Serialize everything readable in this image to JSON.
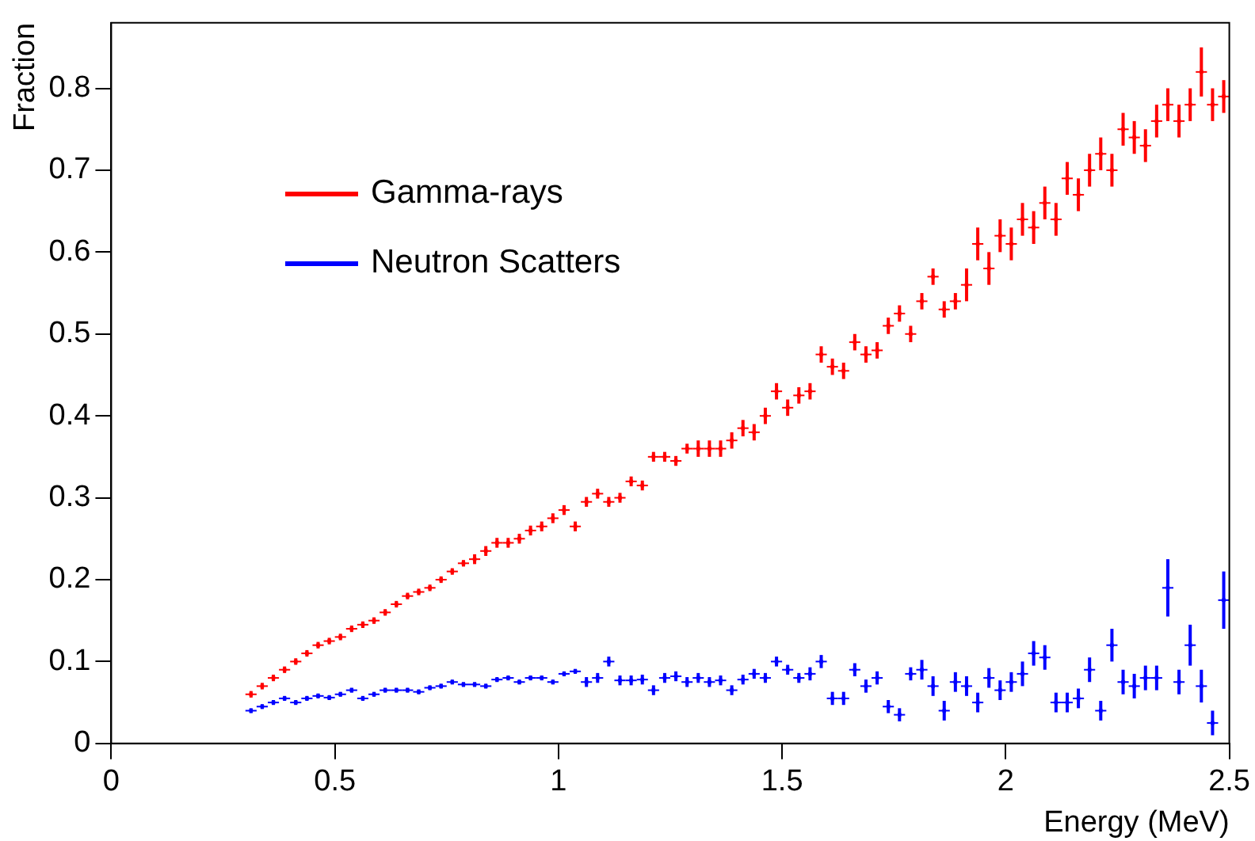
{
  "chart_data": {
    "type": "scatter",
    "xlabel": "Energy (MeV)",
    "ylabel": "Fraction",
    "legend": "top left",
    "grid": false,
    "xlim": [
      0,
      2.5
    ],
    "xticks": [
      0,
      0.5,
      1,
      1.5,
      2,
      2.5
    ],
    "ylim": [
      0,
      0.88
    ],
    "yticks": [
      0,
      0.1,
      0.2,
      0.3,
      0.4,
      0.5,
      0.6,
      0.7,
      0.8
    ],
    "x": [
      0.3125,
      0.3375,
      0.3625,
      0.3875,
      0.4125,
      0.4375,
      0.4625,
      0.4875,
      0.5125,
      0.5375,
      0.5625,
      0.5875,
      0.6125,
      0.6375,
      0.6625,
      0.6875,
      0.7125,
      0.7375,
      0.7625,
      0.7875,
      0.8125,
      0.8375,
      0.8625,
      0.8875,
      0.9125,
      0.9375,
      0.9625,
      0.9875,
      1.0125,
      1.0375,
      1.0625,
      1.0875,
      1.1125,
      1.1375,
      1.1625,
      1.1875,
      1.2125,
      1.2375,
      1.2625,
      1.2875,
      1.3125,
      1.3375,
      1.3625,
      1.3875,
      1.4125,
      1.4375,
      1.4625,
      1.4875,
      1.5125,
      1.5375,
      1.5625,
      1.5875,
      1.6125,
      1.6375,
      1.6625,
      1.6875,
      1.7125,
      1.7375,
      1.7625,
      1.7875,
      1.8125,
      1.8375,
      1.8625,
      1.8875,
      1.9125,
      1.9375,
      1.9625,
      1.9875,
      2.0125,
      2.0375,
      2.0625,
      2.0875,
      2.1125,
      2.1375,
      2.1625,
      2.1875,
      2.2125,
      2.2375,
      2.2625,
      2.2875,
      2.3125,
      2.3375,
      2.3625,
      2.3875,
      2.4125,
      2.4375,
      2.4625,
      2.4875
    ],
    "series": [
      {
        "name": "Gamma-rays",
        "color": "#ff0000",
        "values": [
          0.06,
          0.07,
          0.08,
          0.09,
          0.1,
          0.11,
          0.12,
          0.125,
          0.13,
          0.14,
          0.145,
          0.15,
          0.16,
          0.17,
          0.18,
          0.185,
          0.19,
          0.2,
          0.21,
          0.22,
          0.225,
          0.235,
          0.245,
          0.245,
          0.25,
          0.26,
          0.265,
          0.275,
          0.285,
          0.265,
          0.295,
          0.305,
          0.295,
          0.3,
          0.32,
          0.315,
          0.35,
          0.35,
          0.345,
          0.36,
          0.36,
          0.36,
          0.36,
          0.37,
          0.385,
          0.38,
          0.4,
          0.43,
          0.41,
          0.425,
          0.43,
          0.475,
          0.46,
          0.455,
          0.49,
          0.475,
          0.48,
          0.51,
          0.525,
          0.5,
          0.54,
          0.57,
          0.53,
          0.54,
          0.56,
          0.61,
          0.58,
          0.62,
          0.61,
          0.64,
          0.63,
          0.66,
          0.64,
          0.69,
          0.67,
          0.7,
          0.72,
          0.7,
          0.75,
          0.74,
          0.73,
          0.76,
          0.78,
          0.76,
          0.78,
          0.82,
          0.78,
          0.79
        ],
        "errors": [
          0.004,
          0.004,
          0.004,
          0.004,
          0.004,
          0.004,
          0.004,
          0.004,
          0.004,
          0.004,
          0.004,
          0.004,
          0.004,
          0.004,
          0.004,
          0.004,
          0.004,
          0.004,
          0.004,
          0.004,
          0.006,
          0.006,
          0.006,
          0.006,
          0.006,
          0.006,
          0.006,
          0.006,
          0.006,
          0.006,
          0.006,
          0.006,
          0.006,
          0.006,
          0.006,
          0.006,
          0.006,
          0.006,
          0.006,
          0.006,
          0.01,
          0.01,
          0.01,
          0.01,
          0.01,
          0.01,
          0.01,
          0.01,
          0.01,
          0.01,
          0.01,
          0.01,
          0.01,
          0.01,
          0.01,
          0.01,
          0.01,
          0.01,
          0.01,
          0.01,
          0.01,
          0.01,
          0.01,
          0.01,
          0.02,
          0.02,
          0.02,
          0.02,
          0.02,
          0.02,
          0.02,
          0.02,
          0.02,
          0.02,
          0.02,
          0.02,
          0.02,
          0.02,
          0.02,
          0.02,
          0.02,
          0.02,
          0.02,
          0.02,
          0.02,
          0.03,
          0.02,
          0.02
        ],
        "xerrors": [
          0.0125,
          0.0125,
          0.0125,
          0.0125,
          0.0125,
          0.0125,
          0.0125,
          0.0125,
          0.0125,
          0.0125,
          0.0125,
          0.0125,
          0.0125,
          0.0125,
          0.0125,
          0.0125,
          0.0125,
          0.0125,
          0.0125,
          0.0125,
          0.0125,
          0.0125,
          0.0125,
          0.0125,
          0.0125,
          0.0125,
          0.0125,
          0.0125,
          0.0125,
          0.0125,
          0.0125,
          0.0125,
          0.0125,
          0.0125,
          0.0125,
          0.0125,
          0.0125,
          0.0125,
          0.0125,
          0.0125,
          0.0125,
          0.0125,
          0.0125,
          0.0125,
          0.0125,
          0.0125,
          0.0125,
          0.0125,
          0.0125,
          0.0125,
          0.0125,
          0.0125,
          0.0125,
          0.0125,
          0.0125,
          0.0125,
          0.0125,
          0.0125,
          0.0125,
          0.0125,
          0.0125,
          0.0125,
          0.0125,
          0.0125,
          0.0125,
          0.0125,
          0.0125,
          0.0125,
          0.0125,
          0.0125,
          0.0125,
          0.0125,
          0.0125,
          0.0125,
          0.0125,
          0.0125,
          0.0125,
          0.0125,
          0.0125,
          0.0125,
          0.0125,
          0.0125,
          0.0125,
          0.0125,
          0.0125,
          0.0125,
          0.0125,
          0.0125
        ]
      },
      {
        "name": "Neutron Scatters",
        "color": "#0000ff",
        "values": [
          0.04,
          0.045,
          0.05,
          0.055,
          0.05,
          0.055,
          0.058,
          0.056,
          0.06,
          0.065,
          0.055,
          0.06,
          0.065,
          0.065,
          0.065,
          0.063,
          0.068,
          0.07,
          0.075,
          0.072,
          0.072,
          0.07,
          0.078,
          0.08,
          0.075,
          0.08,
          0.08,
          0.075,
          0.085,
          0.088,
          0.075,
          0.08,
          0.1,
          0.077,
          0.077,
          0.078,
          0.065,
          0.08,
          0.082,
          0.075,
          0.08,
          0.075,
          0.077,
          0.065,
          0.078,
          0.085,
          0.08,
          0.1,
          0.09,
          0.08,
          0.085,
          0.1,
          0.055,
          0.055,
          0.09,
          0.07,
          0.08,
          0.045,
          0.035,
          0.085,
          0.09,
          0.07,
          0.04,
          0.075,
          0.07,
          0.05,
          0.08,
          0.065,
          0.075,
          0.085,
          0.11,
          0.105,
          0.05,
          0.05,
          0.055,
          0.09,
          0.04,
          0.12,
          0.075,
          0.07,
          0.08,
          0.08,
          0.19,
          0.075,
          0.12,
          0.07,
          0.025,
          0.175
        ],
        "errors": [
          0.003,
          0.003,
          0.003,
          0.003,
          0.003,
          0.003,
          0.003,
          0.003,
          0.003,
          0.003,
          0.003,
          0.003,
          0.003,
          0.003,
          0.003,
          0.003,
          0.003,
          0.003,
          0.003,
          0.003,
          0.003,
          0.003,
          0.003,
          0.003,
          0.003,
          0.003,
          0.003,
          0.003,
          0.003,
          0.003,
          0.006,
          0.006,
          0.006,
          0.006,
          0.006,
          0.006,
          0.006,
          0.006,
          0.006,
          0.006,
          0.006,
          0.006,
          0.006,
          0.006,
          0.006,
          0.006,
          0.006,
          0.006,
          0.006,
          0.006,
          0.008,
          0.008,
          0.008,
          0.008,
          0.008,
          0.008,
          0.008,
          0.008,
          0.008,
          0.008,
          0.012,
          0.012,
          0.012,
          0.012,
          0.012,
          0.012,
          0.012,
          0.012,
          0.012,
          0.015,
          0.015,
          0.015,
          0.012,
          0.012,
          0.012,
          0.015,
          0.012,
          0.02,
          0.015,
          0.015,
          0.015,
          0.015,
          0.035,
          0.015,
          0.025,
          0.02,
          0.015,
          0.035
        ],
        "xerrors": [
          0.0125,
          0.0125,
          0.0125,
          0.0125,
          0.0125,
          0.0125,
          0.0125,
          0.0125,
          0.0125,
          0.0125,
          0.0125,
          0.0125,
          0.0125,
          0.0125,
          0.0125,
          0.0125,
          0.0125,
          0.0125,
          0.0125,
          0.0125,
          0.0125,
          0.0125,
          0.0125,
          0.0125,
          0.0125,
          0.0125,
          0.0125,
          0.0125,
          0.0125,
          0.0125,
          0.0125,
          0.0125,
          0.0125,
          0.0125,
          0.0125,
          0.0125,
          0.0125,
          0.0125,
          0.0125,
          0.0125,
          0.0125,
          0.0125,
          0.0125,
          0.0125,
          0.0125,
          0.0125,
          0.0125,
          0.0125,
          0.0125,
          0.0125,
          0.0125,
          0.0125,
          0.0125,
          0.0125,
          0.0125,
          0.0125,
          0.0125,
          0.0125,
          0.0125,
          0.0125,
          0.0125,
          0.0125,
          0.0125,
          0.0125,
          0.0125,
          0.0125,
          0.0125,
          0.0125,
          0.0125,
          0.0125,
          0.0125,
          0.0125,
          0.0125,
          0.0125,
          0.0125,
          0.0125,
          0.0125,
          0.0125,
          0.0125,
          0.0125,
          0.0125,
          0.0125,
          0.0125,
          0.0125,
          0.0125,
          0.0125,
          0.0125,
          0.0125
        ]
      }
    ]
  }
}
